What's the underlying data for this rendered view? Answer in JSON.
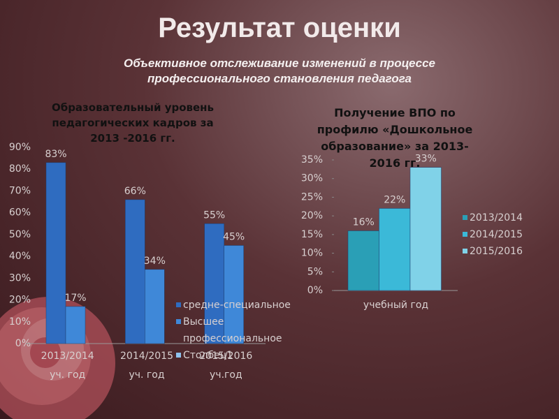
{
  "title": "Результат оценки",
  "subtitle": "Объективное отслеживание изменений в процессе профессионального становления педагога",
  "chart_data": [
    {
      "type": "bar",
      "title": "Образовательный уровень педагогических кадров за 2013 -2016 гг.",
      "categories": [
        "2013/2014 уч. год",
        "2014/2015 уч. год",
        "2015/2016 уч.год"
      ],
      "series": [
        {
          "name": "средне-специальное",
          "color": "#2f6cc0",
          "values": [
            83,
            66,
            55
          ],
          "value_labels": [
            "83%",
            "66%",
            "55%"
          ]
        },
        {
          "name": "Высшее профессиональное",
          "color": "#3f88d8",
          "values": [
            17,
            34,
            45
          ],
          "value_labels": [
            "17%",
            "34%",
            "45%"
          ]
        },
        {
          "name": "Столбец1",
          "color": "#8fc3ee",
          "values": [
            null,
            null,
            null
          ]
        }
      ],
      "ylim": [
        0,
        90
      ],
      "yticks": [
        {
          "value": 0,
          "label": "0%"
        },
        {
          "value": 10,
          "label": "10%"
        },
        {
          "value": 20,
          "label": "20%"
        },
        {
          "value": 30,
          "label": "30%"
        },
        {
          "value": 40,
          "label": "40%"
        },
        {
          "value": 50,
          "label": "50%"
        },
        {
          "value": 60,
          "label": "60%"
        },
        {
          "value": 70,
          "label": "70%"
        },
        {
          "value": 80,
          "label": "80%"
        },
        {
          "value": 90,
          "label": "90%"
        }
      ]
    },
    {
      "type": "bar",
      "title": "Получение ВПО по профилю «Дошкольное образование» за 2013-2016 гг.",
      "categories": [
        "учебный год"
      ],
      "series": [
        {
          "name": "2013/2014",
          "color": "#2a9fb6",
          "values": [
            16
          ],
          "value_labels": [
            "16%"
          ]
        },
        {
          "name": "2014/2015",
          "color": "#3bb9d8",
          "values": [
            22
          ],
          "value_labels": [
            "22%"
          ]
        },
        {
          "name": "2015/2016",
          "color": "#80d2e8",
          "values": [
            33
          ],
          "value_labels": [
            "33%"
          ]
        }
      ],
      "ylim": [
        0,
        35
      ],
      "yticks": [
        {
          "value": 0,
          "label": "0%"
        },
        {
          "value": 5,
          "label": "5%"
        },
        {
          "value": 10,
          "label": "10%"
        },
        {
          "value": 15,
          "label": "15%"
        },
        {
          "value": 20,
          "label": "20%"
        },
        {
          "value": 25,
          "label": "25%"
        },
        {
          "value": 30,
          "label": "30%"
        },
        {
          "value": 35,
          "label": "35%"
        }
      ]
    }
  ]
}
